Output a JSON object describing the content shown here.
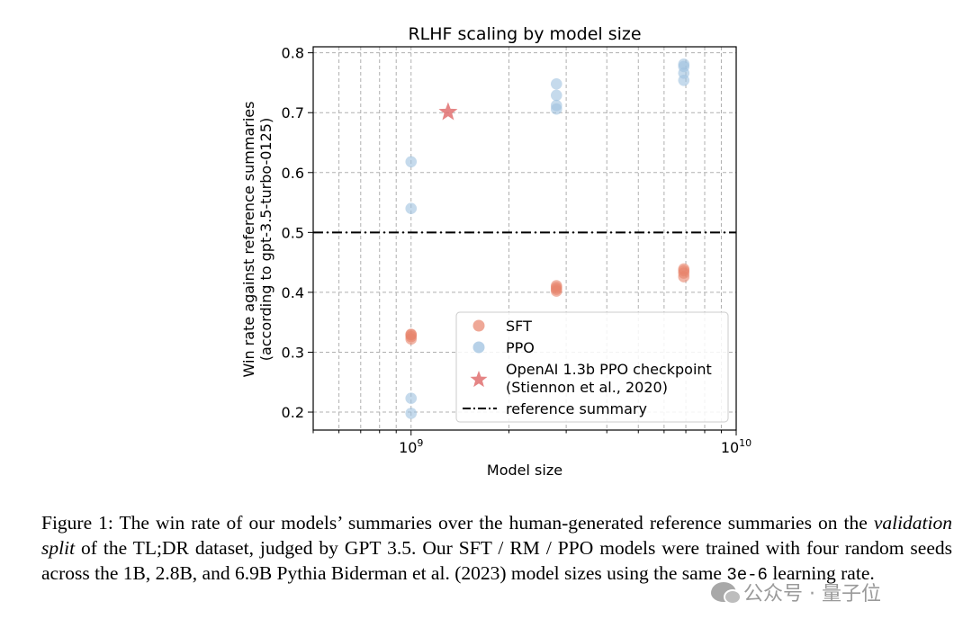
{
  "chart_data": {
    "type": "scatter",
    "title": "RLHF scaling by model size",
    "xlabel": "Model size",
    "ylabel_lines": [
      "Win rate against reference summaries",
      "(according to gpt-3.5-turbo-0125)"
    ],
    "xscale": "log",
    "xlim": [
      500000000,
      10000000000
    ],
    "ylim": [
      0.17,
      0.81
    ],
    "x_tick_labels": [
      {
        "value": 1000000000,
        "base": "10",
        "exp": "9"
      },
      {
        "value": 10000000000,
        "base": "10",
        "exp": "10"
      }
    ],
    "y_ticks": [
      0.2,
      0.3,
      0.4,
      0.5,
      0.6,
      0.7,
      0.8
    ],
    "y_tick_labels": [
      "0.2",
      "0.3",
      "0.4",
      "0.5",
      "0.6",
      "0.7",
      "0.8"
    ],
    "grid": true,
    "legend_position": "lower-right",
    "series": [
      {
        "name": "SFT",
        "marker": "circle",
        "color": "#e8836b",
        "points": [
          {
            "x": 1000000000,
            "y": 0.322
          },
          {
            "x": 1000000000,
            "y": 0.326
          },
          {
            "x": 1000000000,
            "y": 0.329
          },
          {
            "x": 1000000000,
            "y": 0.33
          },
          {
            "x": 2800000000,
            "y": 0.402
          },
          {
            "x": 2800000000,
            "y": 0.405
          },
          {
            "x": 2800000000,
            "y": 0.408
          },
          {
            "x": 2800000000,
            "y": 0.411
          },
          {
            "x": 6900000000,
            "y": 0.426
          },
          {
            "x": 6900000000,
            "y": 0.432
          },
          {
            "x": 6900000000,
            "y": 0.436
          },
          {
            "x": 6900000000,
            "y": 0.439
          }
        ]
      },
      {
        "name": "PPO",
        "marker": "circle",
        "color": "#9fc2e0",
        "points": [
          {
            "x": 1000000000,
            "y": 0.198
          },
          {
            "x": 1000000000,
            "y": 0.223
          },
          {
            "x": 1000000000,
            "y": 0.54
          },
          {
            "x": 1000000000,
            "y": 0.618
          },
          {
            "x": 2800000000,
            "y": 0.706
          },
          {
            "x": 2800000000,
            "y": 0.712
          },
          {
            "x": 2800000000,
            "y": 0.729
          },
          {
            "x": 2800000000,
            "y": 0.748
          },
          {
            "x": 6900000000,
            "y": 0.754
          },
          {
            "x": 6900000000,
            "y": 0.766
          },
          {
            "x": 6900000000,
            "y": 0.777
          },
          {
            "x": 6900000000,
            "y": 0.781
          }
        ]
      },
      {
        "name": "OpenAI 1.3b PPO checkpoint\n(Stiennon et al., 2020)",
        "marker": "star",
        "color": "#e07070",
        "points": [
          {
            "x": 1300000000,
            "y": 0.701
          }
        ]
      }
    ],
    "reference_line": {
      "name": "reference summary",
      "y": 0.5,
      "style": "dash-dot",
      "color": "#000000"
    }
  },
  "caption": {
    "label": "Figure 1: ",
    "text_1": "The win rate of our models’ summaries over the human-generated reference summaries on the ",
    "emph": "validation split",
    "text_2": " of the TL;DR dataset, judged by GPT 3.5. Our SFT / RM / PPO models were trained with four random seeds across the 1B, 2.8B, and 6.9B Pythia Biderman et al. (2023) model sizes using the same ",
    "mono": "3e-6",
    "text_3": " learning rate."
  },
  "watermark": {
    "text": "公众号 · 量子位"
  }
}
